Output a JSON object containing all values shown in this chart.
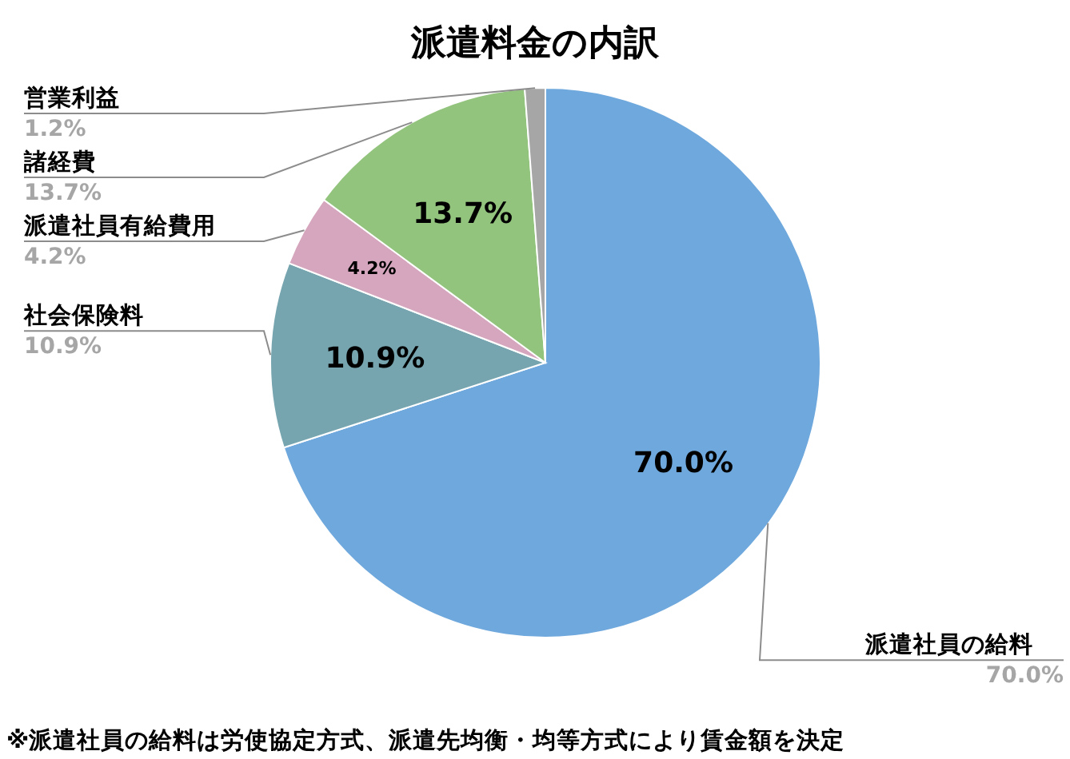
{
  "chart_data": {
    "type": "pie",
    "title": "派遣料金の内訳",
    "categories": [
      "派遣社員の給料",
      "社会保険料",
      "派遣社員有給費用",
      "諸経費",
      "営業利益"
    ],
    "values": [
      70.0,
      10.9,
      4.2,
      13.7,
      1.2
    ],
    "colors": [
      "#6fa8dc",
      "#76a5af",
      "#d5a6bd",
      "#93c47d",
      "#a6a6a6"
    ],
    "value_labels": [
      "70.0%",
      "10.9%",
      "4.2%",
      "13.7%",
      "1.2%"
    ],
    "annotations": [
      "※派遣社員の給料は労使協定方式、派遣先均衡・均等方式により賃金額を決定"
    ]
  }
}
